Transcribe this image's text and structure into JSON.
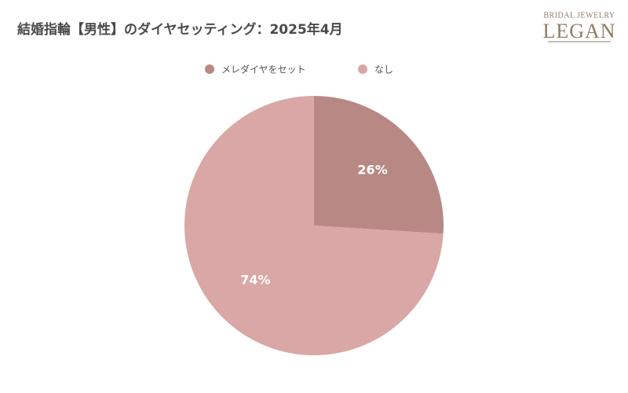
{
  "chart_data": {
    "type": "pie",
    "title": "結婚指輪【男性】のダイヤセッティング：2025年4月",
    "categories": [
      "メレダイヤをセット",
      "なし"
    ],
    "values": [
      26,
      74
    ],
    "value_labels": [
      "26%",
      "74%"
    ],
    "colors": [
      "#b78884",
      "#d9a7a5"
    ],
    "legend": "top"
  },
  "logo": {
    "tagline": "BRIDAL JEWELRY",
    "name": "LEGAN"
  }
}
